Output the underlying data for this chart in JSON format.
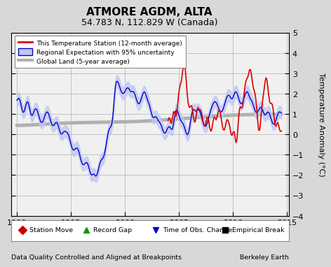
{
  "title": "ATMORE AGDM, ALTA",
  "subtitle": "54.783 N, 112.829 W (Canada)",
  "ylabel": "Temperature Anomaly (°C)",
  "xlabel_left": "Data Quality Controlled and Aligned at Breakpoints",
  "xlabel_right": "Berkeley Earth",
  "ylim": [
    -4,
    5
  ],
  "xlim": [
    1989.5,
    2015.2
  ],
  "xticks": [
    1990,
    1995,
    2000,
    2005,
    2010,
    2015
  ],
  "yticks": [
    -4,
    -3,
    -2,
    -1,
    0,
    1,
    2,
    3,
    4,
    5
  ],
  "bg_color": "#d8d8d8",
  "plot_bg_color": "#f0f0f0",
  "grid_color": "#bbbbbb",
  "station_color": "#dd0000",
  "regional_color": "#0000cc",
  "regional_fill_color": "#c0c8f0",
  "global_color": "#b0b0b0",
  "legend_station_move_color": "#cc0000",
  "legend_record_gap_color": "#009900",
  "legend_obs_change_color": "#0000cc",
  "legend_empirical_color": "#000000"
}
